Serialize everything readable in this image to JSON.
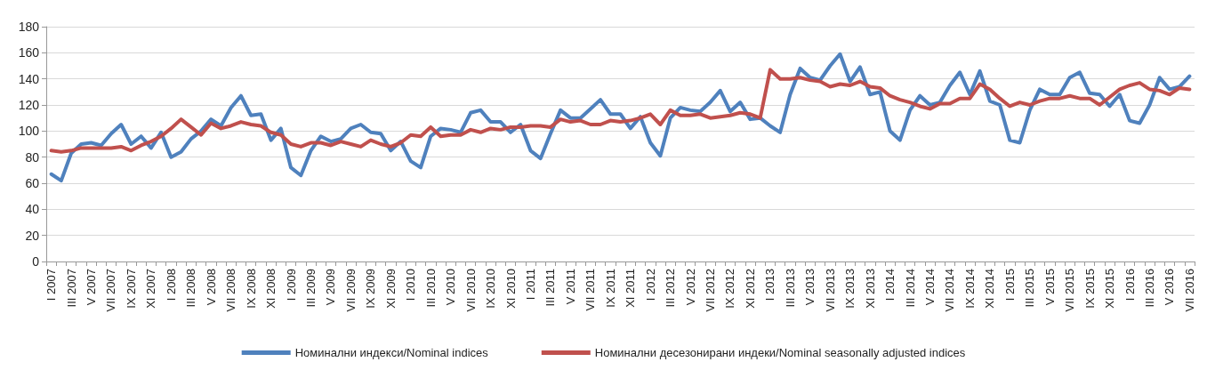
{
  "chart_data": {
    "type": "line",
    "categories": [
      "I 2007",
      null,
      "III 2007",
      null,
      "V 2007",
      null,
      "VII 2007",
      null,
      "IX 2007",
      null,
      "XI 2007",
      null,
      "I 2008",
      null,
      "III 2008",
      null,
      "V 2008",
      null,
      "VII 2008",
      null,
      "IX 2008",
      null,
      "XI 2008",
      null,
      "I 2009",
      null,
      "III 2009",
      null,
      "V 2009",
      null,
      "VII 2009",
      null,
      "IX 2009",
      null,
      "XI 2009",
      null,
      "I 2010",
      null,
      "III 2010",
      null,
      "V 2010",
      null,
      "VII 2010",
      null,
      "IX 2010",
      null,
      "XI 2010",
      null,
      "I 2011",
      null,
      "III 2011",
      null,
      "V 2011",
      null,
      "VII 2011",
      null,
      "IX 2011",
      null,
      "XI 2011",
      null,
      "I 2012",
      null,
      "III 2012",
      null,
      "V 2012",
      null,
      "VII 2012",
      null,
      "IX 2012",
      null,
      "XI 2012",
      null,
      "I 2013",
      null,
      "III 2013",
      null,
      "V 2013",
      null,
      "VII 2013",
      null,
      "IX 2013",
      null,
      "XI 2013",
      null,
      "I 2014",
      null,
      "III 2014",
      null,
      "V 2014",
      null,
      "VII 2014",
      null,
      "IX 2014",
      null,
      "XI 2014",
      null,
      "I 2015",
      null,
      "III 2015",
      null,
      "V 2015",
      null,
      "VII 2015",
      null,
      "IX 2015",
      null,
      "XI 2015",
      null,
      "I 2016",
      null,
      "III 2016",
      null,
      "V 2016",
      null,
      "VII 2016"
    ],
    "series": [
      {
        "name": "Номинални индекси/Nominal indices",
        "color": "#4f81bd",
        "values": [
          67,
          62,
          83,
          90,
          91,
          89,
          98,
          105,
          90,
          96,
          87,
          99,
          80,
          84,
          94,
          100,
          109,
          104,
          118,
          127,
          112,
          113,
          93,
          102,
          72,
          66,
          85,
          96,
          92,
          94,
          102,
          105,
          99,
          98,
          85,
          92,
          77,
          72,
          96,
          102,
          101,
          99,
          114,
          116,
          107,
          107,
          99,
          105,
          85,
          79,
          98,
          116,
          110,
          110,
          117,
          124,
          113,
          113,
          102,
          111,
          91,
          81,
          110,
          118,
          116,
          115,
          122,
          131,
          115,
          122,
          109,
          110,
          104,
          99,
          128,
          148,
          141,
          139,
          150,
          159,
          138,
          149,
          128,
          130,
          100,
          93,
          116,
          127,
          120,
          122,
          135,
          145,
          128,
          146,
          123,
          120,
          93,
          91,
          116,
          132,
          128,
          128,
          141,
          145,
          129,
          128,
          119,
          128,
          108,
          106,
          120,
          141,
          132,
          134,
          142
        ]
      },
      {
        "name": "Номинални десезонирани индеки/Nominal seasonally adjusted indices",
        "color": "#c0504d",
        "values": [
          85,
          84,
          85,
          87,
          87,
          87,
          87,
          88,
          85,
          89,
          92,
          96,
          102,
          109,
          103,
          97,
          106,
          102,
          104,
          107,
          105,
          104,
          99,
          97,
          90,
          88,
          91,
          91,
          89,
          92,
          90,
          88,
          93,
          90,
          88,
          91,
          97,
          96,
          103,
          96,
          97,
          97,
          101,
          99,
          102,
          101,
          103,
          103,
          104,
          104,
          103,
          109,
          107,
          108,
          105,
          105,
          108,
          107,
          108,
          110,
          113,
          105,
          116,
          112,
          112,
          113,
          110,
          111,
          112,
          114,
          113,
          110,
          147,
          140,
          140,
          141,
          139,
          138,
          134,
          136,
          135,
          138,
          134,
          133,
          127,
          124,
          122,
          119,
          117,
          121,
          121,
          125,
          125,
          136,
          132,
          125,
          119,
          122,
          120,
          123,
          125,
          125,
          127,
          125,
          125,
          120,
          126,
          132,
          135,
          137,
          132,
          131,
          128,
          133,
          132
        ]
      }
    ],
    "ylim": [
      0,
      180
    ],
    "yticks": [
      0,
      20,
      40,
      60,
      80,
      100,
      120,
      140,
      160,
      180
    ],
    "grid": "y",
    "legend": "bottom",
    "marker": "none",
    "line_style": "solid"
  }
}
